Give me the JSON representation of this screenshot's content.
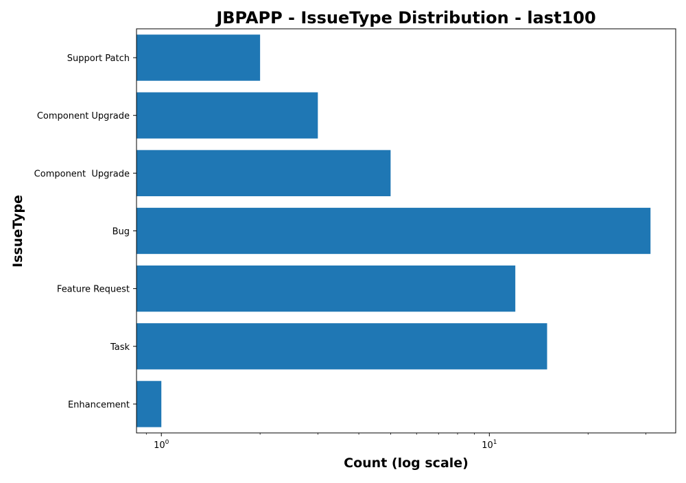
{
  "chart_data": {
    "type": "bar",
    "orientation": "horizontal",
    "title": "JBPAPP - IssueType Distribution - last100",
    "xlabel": "Count (log scale)",
    "ylabel": "IssueType",
    "xscale": "log",
    "xlim": [
      0.84,
      37
    ],
    "x_ticks": [
      {
        "value": 1,
        "base": "10",
        "exp": "0"
      },
      {
        "value": 10,
        "base": "10",
        "exp": "1"
      }
    ],
    "bar_color": "#1f77b4",
    "grid": false,
    "categories": [
      "Support Patch",
      "Component Upgrade",
      "Component  Upgrade",
      "Bug",
      "Feature Request",
      "Task",
      "Enhancement"
    ],
    "values": [
      2,
      3,
      5,
      31,
      12,
      15,
      1
    ]
  }
}
